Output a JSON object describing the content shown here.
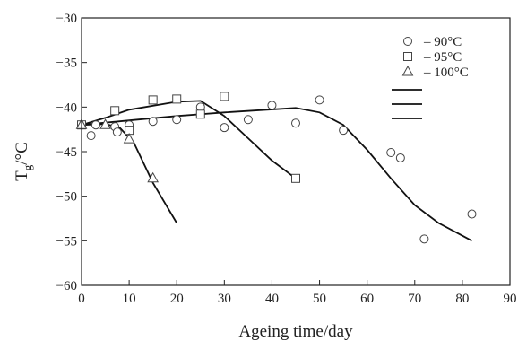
{
  "chart_data": {
    "type": "scatter",
    "xlabel": "Ageing time/day",
    "ylabel_main": "T",
    "ylabel_sub": "g",
    "ylabel_unit": "/°C",
    "xlim": [
      0,
      90
    ],
    "ylim": [
      -60,
      -30
    ],
    "xticks": [
      0,
      10,
      20,
      30,
      40,
      50,
      60,
      70,
      80,
      90
    ],
    "yticks": [
      -30,
      -35,
      -40,
      -45,
      -50,
      -55,
      -60
    ],
    "grid": false,
    "legend_position": "top-right",
    "series": [
      {
        "name": "90°C",
        "legend_label": "– 90°C",
        "marker": "circle",
        "points": [
          [
            0,
            -42
          ],
          [
            2,
            -43.2
          ],
          [
            3,
            -42
          ],
          [
            7,
            -42.2
          ],
          [
            7.5,
            -42.8
          ],
          [
            10,
            -42
          ],
          [
            15,
            -41.6
          ],
          [
            20,
            -41.4
          ],
          [
            25,
            -40
          ],
          [
            30,
            -42.3
          ],
          [
            35,
            -41.4
          ],
          [
            40,
            -39.8
          ],
          [
            45,
            -41.8
          ],
          [
            50,
            -39.2
          ],
          [
            55,
            -42.6
          ],
          [
            65,
            -45.1
          ],
          [
            67,
            -45.7
          ],
          [
            72,
            -54.8
          ],
          [
            82,
            -52
          ]
        ],
        "trend": [
          [
            0,
            -42
          ],
          [
            10,
            -41.5
          ],
          [
            20,
            -41
          ],
          [
            30,
            -40.6
          ],
          [
            45,
            -40.1
          ],
          [
            50,
            -40.6
          ],
          [
            55,
            -42
          ],
          [
            60,
            -44.8
          ],
          [
            65,
            -48
          ],
          [
            70,
            -51
          ],
          [
            75,
            -53
          ],
          [
            82,
            -55
          ]
        ]
      },
      {
        "name": "95°C",
        "legend_label": "– 95°C",
        "marker": "square",
        "points": [
          [
            0,
            -42
          ],
          [
            7,
            -40.4
          ],
          [
            10,
            -42.6
          ],
          [
            15,
            -39.2
          ],
          [
            20,
            -39.1
          ],
          [
            25,
            -40.8
          ],
          [
            30,
            -38.8
          ],
          [
            45,
            -48
          ]
        ],
        "trend": [
          [
            0,
            -42
          ],
          [
            5,
            -41.2
          ],
          [
            10,
            -40.3
          ],
          [
            20,
            -39.4
          ],
          [
            25,
            -39.3
          ],
          [
            30,
            -41
          ],
          [
            35,
            -43.5
          ],
          [
            40,
            -46
          ],
          [
            45,
            -48
          ]
        ]
      },
      {
        "name": "100°C",
        "legend_label": "– 100°C",
        "marker": "triangle",
        "points": [
          [
            0,
            -42
          ],
          [
            5,
            -42
          ],
          [
            10,
            -43.6
          ],
          [
            15,
            -48
          ]
        ],
        "trend": [
          [
            0,
            -42
          ],
          [
            5,
            -41.9
          ],
          [
            8,
            -42.3
          ],
          [
            11,
            -44
          ],
          [
            15,
            -48.5
          ],
          [
            20,
            -53
          ]
        ]
      }
    ]
  }
}
